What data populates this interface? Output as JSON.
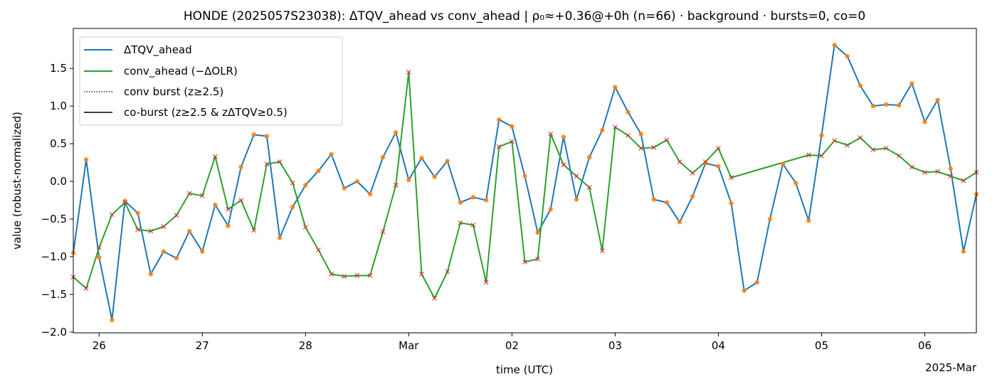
{
  "chart_data": {
    "type": "line",
    "title": "HONDE (2025057S23038): ΔTQV_ahead vs conv_ahead | ρ₀≈+0.36@+0h (n=66) · background · bursts=0, co=0",
    "xlabel": "time (UTC)",
    "ylabel": "value (robust-normalized)",
    "x_offset_label": "2025-Mar",
    "x_start": "2025-02-25T18:00",
    "x_step_hours": 3,
    "xlim_hours_from_start": [
      0,
      210
    ],
    "ylim": [
      -2.01,
      2.03
    ],
    "grid": false,
    "legend_position": "top-left",
    "x_ticks": [
      {
        "label": "26",
        "hours": 6
      },
      {
        "label": "27",
        "hours": 30
      },
      {
        "label": "28",
        "hours": 54
      },
      {
        "label": "Mar",
        "hours": 78
      },
      {
        "label": "02",
        "hours": 102
      },
      {
        "label": "03",
        "hours": 126
      },
      {
        "label": "04",
        "hours": 150
      },
      {
        "label": "05",
        "hours": 174
      },
      {
        "label": "06",
        "hours": 198
      }
    ],
    "y_ticks": [
      {
        "label": "1.5",
        "value": 1.5
      },
      {
        "label": "1.0",
        "value": 1.0
      },
      {
        "label": "0.5",
        "value": 0.5
      },
      {
        "label": "0.0",
        "value": 0.0
      },
      {
        "label": "−0.5",
        "value": -0.5
      },
      {
        "label": "−1.0",
        "value": -1.0
      },
      {
        "label": "−1.5",
        "value": -1.5
      },
      {
        "label": "−2.0",
        "value": -2.0
      }
    ],
    "legend": [
      {
        "label": "ΔTQV_ahead",
        "style": "solid",
        "color": "#1f77b4"
      },
      {
        "label": "conv_ahead (−ΔOLR)",
        "style": "solid",
        "color": "#2ca02c"
      },
      {
        "label": "conv burst (z≥2.5)",
        "style": "dotted",
        "color": "#000000"
      },
      {
        "label": "co-burst (z≥2.5 & zΔTQV≥0.5)",
        "style": "solid",
        "color": "#000000"
      }
    ],
    "series": [
      {
        "name": "ΔTQV_ahead",
        "color": "#1f77b4",
        "marker": "dot",
        "marker_color": "#ff7f0e",
        "values": [
          -0.95,
          0.29,
          -1.01,
          -1.84,
          -0.26,
          -0.42,
          -1.23,
          -0.93,
          -1.02,
          -0.66,
          -0.93,
          -0.31,
          -0.59,
          0.19,
          0.62,
          0.6,
          -0.75,
          -0.34,
          -0.05,
          0.14,
          0.36,
          -0.09,
          0.0,
          -0.17,
          0.32,
          0.65,
          0.02,
          0.31,
          0.06,
          0.27,
          -0.28,
          -0.21,
          -0.25,
          0.82,
          0.73,
          0.07,
          -0.68,
          -0.37,
          0.59,
          -0.24,
          0.32,
          0.68,
          1.25,
          0.92,
          0.63,
          -0.24,
          -0.28,
          -0.54,
          -0.2,
          0.24,
          0.2,
          -0.29,
          -1.45,
          -1.34,
          -0.5,
          0.23,
          -0.02,
          -0.52,
          0.61,
          1.81,
          1.66,
          1.27,
          1.0,
          1.02,
          1.01,
          1.3,
          0.79,
          1.08,
          0.17,
          -0.93,
          -0.17
        ]
      },
      {
        "name": "conv_ahead (−ΔOLR)",
        "color": "#2ca02c",
        "marker": "x",
        "marker_color": "#d62728",
        "values": [
          -1.27,
          -1.42,
          -0.88,
          -0.44,
          -0.28,
          -0.64,
          -0.66,
          -0.6,
          -0.45,
          -0.16,
          -0.19,
          0.33,
          -0.37,
          -0.25,
          -0.65,
          0.23,
          0.26,
          -0.02,
          -0.61,
          -0.91,
          -1.23,
          -1.26,
          -1.25,
          -1.25,
          -0.67,
          -0.05,
          1.45,
          -1.23,
          -1.55,
          -1.2,
          -0.55,
          -0.58,
          -1.34,
          0.46,
          0.53,
          -1.07,
          -1.03,
          0.63,
          0.22,
          0.07,
          -0.08,
          -0.92,
          0.72,
          0.61,
          0.44,
          0.45,
          0.55,
          0.26,
          0.11,
          0.26,
          0.44,
          0.05,
          null,
          null,
          null,
          null,
          null,
          0.35,
          0.34,
          0.54,
          0.48,
          0.58,
          0.42,
          0.44,
          0.34,
          0.19,
          0.12,
          0.13,
          0.07,
          0.01,
          0.12
        ]
      }
    ]
  }
}
